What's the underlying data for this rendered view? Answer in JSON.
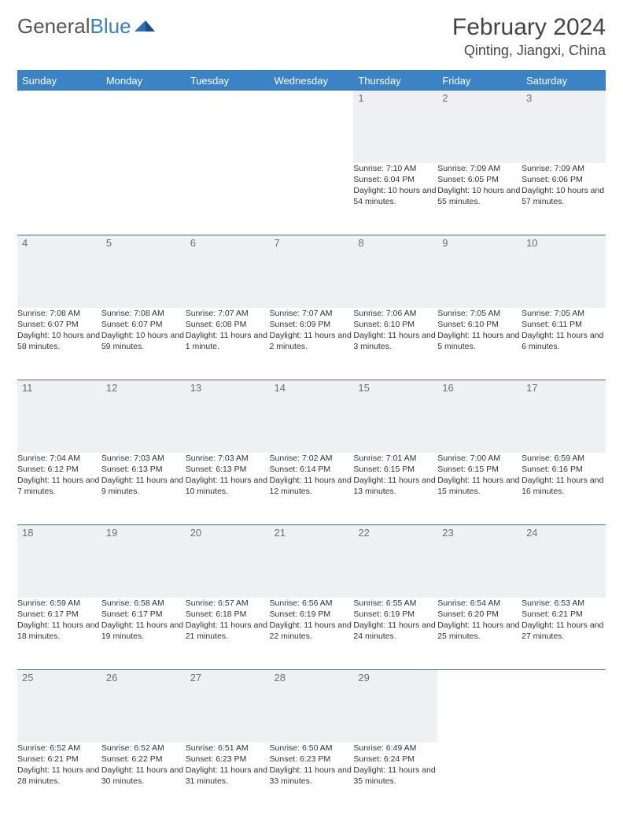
{
  "logo": {
    "text1": "General",
    "text2": "Blue"
  },
  "title": "February 2024",
  "location": "Qinting, Jiangxi, China",
  "colors": {
    "header_bg": "#3b83c7",
    "header_text": "#ffffff",
    "daynum_bg": "#eef0f2",
    "daynum_text": "#6a6f76",
    "border": "#3b6fa8",
    "body_text": "#333333",
    "logo_gray": "#555555",
    "logo_blue": "#3b7fc4"
  },
  "weekdays": [
    "Sunday",
    "Monday",
    "Tuesday",
    "Wednesday",
    "Thursday",
    "Friday",
    "Saturday"
  ],
  "weeks": [
    [
      null,
      null,
      null,
      null,
      {
        "n": "1",
        "sr": "7:10 AM",
        "ss": "6:04 PM",
        "dl": "10 hours and 54 minutes."
      },
      {
        "n": "2",
        "sr": "7:09 AM",
        "ss": "6:05 PM",
        "dl": "10 hours and 55 minutes."
      },
      {
        "n": "3",
        "sr": "7:09 AM",
        "ss": "6:06 PM",
        "dl": "10 hours and 57 minutes."
      }
    ],
    [
      {
        "n": "4",
        "sr": "7:08 AM",
        "ss": "6:07 PM",
        "dl": "10 hours and 58 minutes."
      },
      {
        "n": "5",
        "sr": "7:08 AM",
        "ss": "6:07 PM",
        "dl": "10 hours and 59 minutes."
      },
      {
        "n": "6",
        "sr": "7:07 AM",
        "ss": "6:08 PM",
        "dl": "11 hours and 1 minute."
      },
      {
        "n": "7",
        "sr": "7:07 AM",
        "ss": "6:09 PM",
        "dl": "11 hours and 2 minutes."
      },
      {
        "n": "8",
        "sr": "7:06 AM",
        "ss": "6:10 PM",
        "dl": "11 hours and 3 minutes."
      },
      {
        "n": "9",
        "sr": "7:05 AM",
        "ss": "6:10 PM",
        "dl": "11 hours and 5 minutes."
      },
      {
        "n": "10",
        "sr": "7:05 AM",
        "ss": "6:11 PM",
        "dl": "11 hours and 6 minutes."
      }
    ],
    [
      {
        "n": "11",
        "sr": "7:04 AM",
        "ss": "6:12 PM",
        "dl": "11 hours and 7 minutes."
      },
      {
        "n": "12",
        "sr": "7:03 AM",
        "ss": "6:13 PM",
        "dl": "11 hours and 9 minutes."
      },
      {
        "n": "13",
        "sr": "7:03 AM",
        "ss": "6:13 PM",
        "dl": "11 hours and 10 minutes."
      },
      {
        "n": "14",
        "sr": "7:02 AM",
        "ss": "6:14 PM",
        "dl": "11 hours and 12 minutes."
      },
      {
        "n": "15",
        "sr": "7:01 AM",
        "ss": "6:15 PM",
        "dl": "11 hours and 13 minutes."
      },
      {
        "n": "16",
        "sr": "7:00 AM",
        "ss": "6:15 PM",
        "dl": "11 hours and 15 minutes."
      },
      {
        "n": "17",
        "sr": "6:59 AM",
        "ss": "6:16 PM",
        "dl": "11 hours and 16 minutes."
      }
    ],
    [
      {
        "n": "18",
        "sr": "6:59 AM",
        "ss": "6:17 PM",
        "dl": "11 hours and 18 minutes."
      },
      {
        "n": "19",
        "sr": "6:58 AM",
        "ss": "6:17 PM",
        "dl": "11 hours and 19 minutes."
      },
      {
        "n": "20",
        "sr": "6:57 AM",
        "ss": "6:18 PM",
        "dl": "11 hours and 21 minutes."
      },
      {
        "n": "21",
        "sr": "6:56 AM",
        "ss": "6:19 PM",
        "dl": "11 hours and 22 minutes."
      },
      {
        "n": "22",
        "sr": "6:55 AM",
        "ss": "6:19 PM",
        "dl": "11 hours and 24 minutes."
      },
      {
        "n": "23",
        "sr": "6:54 AM",
        "ss": "6:20 PM",
        "dl": "11 hours and 25 minutes."
      },
      {
        "n": "24",
        "sr": "6:53 AM",
        "ss": "6:21 PM",
        "dl": "11 hours and 27 minutes."
      }
    ],
    [
      {
        "n": "25",
        "sr": "6:52 AM",
        "ss": "6:21 PM",
        "dl": "11 hours and 28 minutes."
      },
      {
        "n": "26",
        "sr": "6:52 AM",
        "ss": "6:22 PM",
        "dl": "11 hours and 30 minutes."
      },
      {
        "n": "27",
        "sr": "6:51 AM",
        "ss": "6:23 PM",
        "dl": "11 hours and 31 minutes."
      },
      {
        "n": "28",
        "sr": "6:50 AM",
        "ss": "6:23 PM",
        "dl": "11 hours and 33 minutes."
      },
      {
        "n": "29",
        "sr": "6:49 AM",
        "ss": "6:24 PM",
        "dl": "11 hours and 35 minutes."
      },
      null,
      null
    ]
  ],
  "labels": {
    "sunrise": "Sunrise:",
    "sunset": "Sunset:",
    "daylight": "Daylight:"
  }
}
